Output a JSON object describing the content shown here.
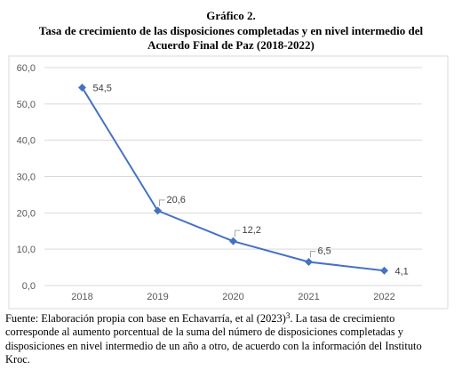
{
  "chart_data": {
    "type": "line",
    "heading": "Gráfico 2.",
    "title_lines": [
      "Tasa de crecimiento de las disposiciones completadas y en nivel intermedio del",
      "Acuerdo Final de Paz (2018-2022)"
    ],
    "categories": [
      "2018",
      "2019",
      "2020",
      "2021",
      "2022"
    ],
    "series": [
      {
        "color": "#4472c4",
        "values": [
          54.5,
          20.6,
          12.2,
          6.5,
          4.1
        ],
        "value_labels": [
          "54,5",
          "20,6",
          "12,2",
          "6,5",
          "4,1"
        ]
      }
    ],
    "ylim": [
      0,
      60
    ],
    "yticks": [
      {
        "value": 0,
        "label": "0,0"
      },
      {
        "value": 10,
        "label": "10,0"
      },
      {
        "value": 20,
        "label": "20,0"
      },
      {
        "value": 30,
        "label": "30,0"
      },
      {
        "value": 40,
        "label": "40,0"
      },
      {
        "value": 50,
        "label": "50,0"
      },
      {
        "value": 60,
        "label": "60,0"
      }
    ],
    "grid": true,
    "source": {
      "line1": "Fuente: Elaboración propia con base en Echavarría, et al (2023)",
      "superscript": "3",
      "line1_end": ". La tasa de crecimiento",
      "lines": [
        "corresponde al aumento porcentual de la suma del número de disposiciones completadas y",
        "disposiciones en nivel intermedio de un año a otro, de acuerdo con la información del Instituto",
        "Kroc."
      ]
    }
  }
}
